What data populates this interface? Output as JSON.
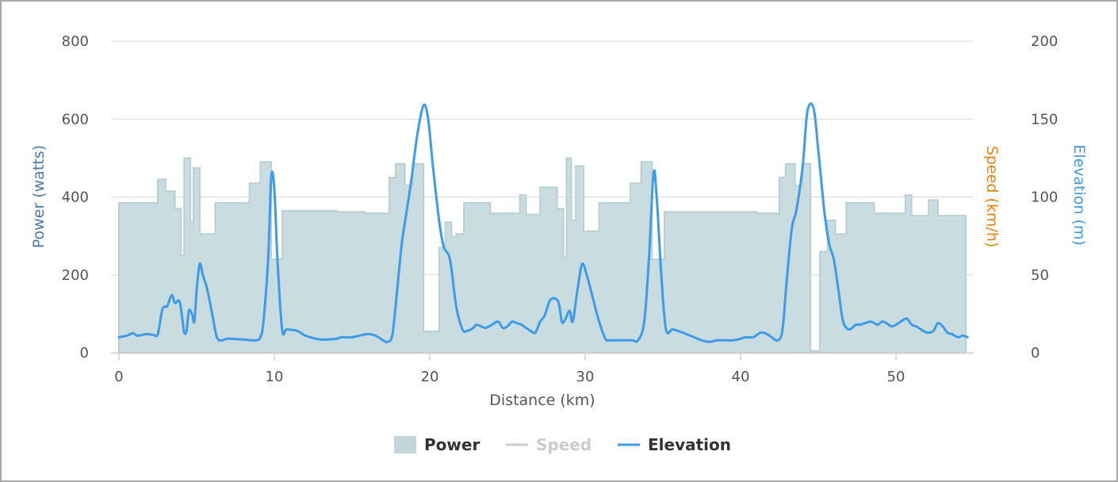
{
  "chart_data": {
    "type": "area",
    "xlabel": "Distance (km)",
    "x_ticks": [
      "0",
      "10",
      "20",
      "30",
      "40",
      "50"
    ],
    "xlim": [
      0,
      55
    ],
    "axes": {
      "power": {
        "label": "Power (watts)",
        "ticks": [
          "0",
          "200",
          "400",
          "600",
          "800"
        ],
        "ylim": [
          0,
          800
        ],
        "color": "#4a79b4"
      },
      "speed": {
        "label": "Speed (km/h)",
        "ticks": [],
        "color": "#e8870e"
      },
      "elevation": {
        "label": "Elevation (m)",
        "ticks": [
          "0",
          "50",
          "100",
          "150",
          "200"
        ],
        "ylim": [
          0,
          200
        ],
        "color": "#3d9be9"
      }
    },
    "grid": true,
    "legend_position": "bottom-center",
    "series": [
      {
        "name": "Power",
        "kind": "step-area",
        "axis": "power",
        "color": "#c9dce0",
        "stroke": "#b8d0d6",
        "points": [
          [
            0.0,
            385
          ],
          [
            0.8,
            385
          ],
          [
            2.5,
            385
          ],
          [
            2.5,
            445
          ],
          [
            3.0,
            445
          ],
          [
            3.0,
            415
          ],
          [
            3.6,
            415
          ],
          [
            3.6,
            370
          ],
          [
            4.0,
            370
          ],
          [
            4.0,
            250
          ],
          [
            4.2,
            250
          ],
          [
            4.2,
            500
          ],
          [
            4.6,
            500
          ],
          [
            4.6,
            335
          ],
          [
            4.8,
            335
          ],
          [
            4.8,
            475
          ],
          [
            5.2,
            475
          ],
          [
            5.2,
            305
          ],
          [
            6.2,
            305
          ],
          [
            6.2,
            385
          ],
          [
            8.4,
            385
          ],
          [
            8.4,
            435
          ],
          [
            9.1,
            435
          ],
          [
            9.1,
            490
          ],
          [
            9.8,
            490
          ],
          [
            9.8,
            240
          ],
          [
            10.5,
            240
          ],
          [
            10.5,
            365
          ],
          [
            14.0,
            365
          ],
          [
            14.0,
            362
          ],
          [
            15.8,
            362
          ],
          [
            15.8,
            358
          ],
          [
            17.4,
            358
          ],
          [
            17.4,
            450
          ],
          [
            17.8,
            450
          ],
          [
            17.8,
            485
          ],
          [
            18.4,
            485
          ],
          [
            18.4,
            430
          ],
          [
            18.9,
            430
          ],
          [
            18.9,
            485
          ],
          [
            19.6,
            485
          ],
          [
            19.6,
            55
          ],
          [
            20.6,
            55
          ],
          [
            20.6,
            270
          ],
          [
            21.0,
            270
          ],
          [
            21.0,
            335
          ],
          [
            21.4,
            335
          ],
          [
            21.4,
            298
          ],
          [
            21.7,
            298
          ],
          [
            21.7,
            305
          ],
          [
            22.2,
            305
          ],
          [
            22.2,
            385
          ],
          [
            23.9,
            385
          ],
          [
            23.9,
            358
          ],
          [
            25.8,
            358
          ],
          [
            25.8,
            405
          ],
          [
            26.2,
            405
          ],
          [
            26.2,
            355
          ],
          [
            27.1,
            355
          ],
          [
            27.1,
            425
          ],
          [
            28.2,
            425
          ],
          [
            28.2,
            370
          ],
          [
            28.6,
            370
          ],
          [
            28.6,
            245
          ],
          [
            28.8,
            245
          ],
          [
            28.8,
            500
          ],
          [
            29.1,
            500
          ],
          [
            29.1,
            340
          ],
          [
            29.4,
            340
          ],
          [
            29.4,
            480
          ],
          [
            29.9,
            480
          ],
          [
            29.9,
            312
          ],
          [
            30.9,
            312
          ],
          [
            30.9,
            385
          ],
          [
            32.9,
            385
          ],
          [
            32.9,
            435
          ],
          [
            33.6,
            435
          ],
          [
            33.6,
            490
          ],
          [
            34.3,
            490
          ],
          [
            34.3,
            240
          ],
          [
            35.1,
            240
          ],
          [
            35.1,
            362
          ],
          [
            41.0,
            362
          ],
          [
            41.0,
            358
          ],
          [
            42.5,
            358
          ],
          [
            42.5,
            450
          ],
          [
            42.9,
            450
          ],
          [
            42.9,
            485
          ],
          [
            43.5,
            485
          ],
          [
            43.5,
            428
          ],
          [
            44.0,
            428
          ],
          [
            44.0,
            485
          ],
          [
            44.5,
            485
          ],
          [
            44.5,
            5
          ],
          [
            45.1,
            5
          ],
          [
            45.1,
            260
          ],
          [
            45.6,
            260
          ],
          [
            45.6,
            340
          ],
          [
            46.1,
            340
          ],
          [
            46.1,
            305
          ],
          [
            46.8,
            305
          ],
          [
            46.8,
            385
          ],
          [
            48.6,
            385
          ],
          [
            48.6,
            358
          ],
          [
            50.6,
            358
          ],
          [
            50.6,
            405
          ],
          [
            51.0,
            405
          ],
          [
            51.0,
            352
          ],
          [
            52.1,
            352
          ],
          [
            52.1,
            392
          ],
          [
            52.7,
            392
          ],
          [
            52.7,
            352
          ],
          [
            54.5,
            352
          ]
        ]
      },
      {
        "name": "Speed",
        "kind": "line",
        "axis": "speed",
        "color": "#c8c8c8",
        "legend_dimmed": true,
        "points": []
      },
      {
        "name": "Elevation",
        "kind": "line",
        "axis": "elevation",
        "color": "#3d9be9",
        "points": [
          [
            0.0,
            10
          ],
          [
            0.5,
            11
          ],
          [
            0.9,
            12.5
          ],
          [
            1.2,
            11
          ],
          [
            1.8,
            12
          ],
          [
            2.2,
            11.5
          ],
          [
            2.5,
            12
          ],
          [
            2.8,
            28
          ],
          [
            3.1,
            30
          ],
          [
            3.4,
            37
          ],
          [
            3.6,
            32
          ],
          [
            3.9,
            33
          ],
          [
            4.1,
            20
          ],
          [
            4.2,
            13
          ],
          [
            4.35,
            14
          ],
          [
            4.5,
            27
          ],
          [
            4.7,
            25
          ],
          [
            4.85,
            20
          ],
          [
            5.0,
            40
          ],
          [
            5.2,
            57
          ],
          [
            5.4,
            50
          ],
          [
            5.7,
            40
          ],
          [
            6.0,
            25
          ],
          [
            6.3,
            10
          ],
          [
            6.6,
            8
          ],
          [
            7.0,
            9
          ],
          [
            8.0,
            8.5
          ],
          [
            8.8,
            8
          ],
          [
            9.1,
            10
          ],
          [
            9.3,
            20
          ],
          [
            9.6,
            60
          ],
          [
            9.8,
            113
          ],
          [
            10.0,
            105
          ],
          [
            10.2,
            60
          ],
          [
            10.5,
            15
          ],
          [
            10.8,
            15
          ],
          [
            11.5,
            14
          ],
          [
            12.0,
            11
          ],
          [
            13.0,
            8.5
          ],
          [
            14.0,
            9
          ],
          [
            14.3,
            10
          ],
          [
            15.0,
            10
          ],
          [
            16.0,
            12
          ],
          [
            16.5,
            11
          ],
          [
            17.0,
            8
          ],
          [
            17.3,
            7
          ],
          [
            17.6,
            12
          ],
          [
            17.9,
            40
          ],
          [
            18.2,
            70
          ],
          [
            18.5,
            90
          ],
          [
            18.8,
            110
          ],
          [
            19.2,
            140
          ],
          [
            19.6,
            159
          ],
          [
            19.9,
            150
          ],
          [
            20.2,
            120
          ],
          [
            20.6,
            85
          ],
          [
            20.9,
            68
          ],
          [
            21.3,
            60
          ],
          [
            21.7,
            30
          ],
          [
            22.1,
            15
          ],
          [
            22.4,
            14
          ],
          [
            22.8,
            16
          ],
          [
            23.0,
            18
          ],
          [
            23.3,
            17
          ],
          [
            23.6,
            16
          ],
          [
            24.0,
            18
          ],
          [
            24.4,
            20
          ],
          [
            24.7,
            16
          ],
          [
            25.0,
            17
          ],
          [
            25.3,
            20
          ],
          [
            25.6,
            19
          ],
          [
            25.9,
            18
          ],
          [
            26.2,
            16
          ],
          [
            26.5,
            14
          ],
          [
            26.8,
            13
          ],
          [
            27.1,
            20
          ],
          [
            27.4,
            24
          ],
          [
            27.7,
            33
          ],
          [
            28.0,
            35
          ],
          [
            28.3,
            32
          ],
          [
            28.5,
            20
          ],
          [
            28.7,
            21
          ],
          [
            29.0,
            27
          ],
          [
            29.2,
            20
          ],
          [
            29.5,
            40
          ],
          [
            29.8,
            57
          ],
          [
            30.1,
            50
          ],
          [
            30.5,
            35
          ],
          [
            30.9,
            20
          ],
          [
            31.3,
            9
          ],
          [
            31.6,
            8
          ],
          [
            32.0,
            8
          ],
          [
            33.0,
            8
          ],
          [
            33.4,
            8
          ],
          [
            33.8,
            20
          ],
          [
            34.1,
            60
          ],
          [
            34.4,
            115
          ],
          [
            34.6,
            100
          ],
          [
            34.9,
            50
          ],
          [
            35.2,
            15
          ],
          [
            35.6,
            15
          ],
          [
            36.0,
            14
          ],
          [
            37.0,
            10
          ],
          [
            37.5,
            8
          ],
          [
            38.0,
            7
          ],
          [
            38.5,
            8
          ],
          [
            39.0,
            8
          ],
          [
            39.5,
            8
          ],
          [
            40.0,
            9
          ],
          [
            40.3,
            10
          ],
          [
            40.8,
            10
          ],
          [
            41.3,
            13
          ],
          [
            41.7,
            12
          ],
          [
            42.0,
            10
          ],
          [
            42.4,
            8
          ],
          [
            42.7,
            15
          ],
          [
            43.0,
            50
          ],
          [
            43.3,
            80
          ],
          [
            43.6,
            92
          ],
          [
            44.0,
            120
          ],
          [
            44.3,
            155
          ],
          [
            44.7,
            157
          ],
          [
            45.0,
            130
          ],
          [
            45.4,
            90
          ],
          [
            45.7,
            70
          ],
          [
            46.0,
            60
          ],
          [
            46.3,
            40
          ],
          [
            46.6,
            20
          ],
          [
            47.0,
            15
          ],
          [
            47.4,
            18
          ],
          [
            47.7,
            18
          ],
          [
            48.0,
            19
          ],
          [
            48.4,
            20
          ],
          [
            48.8,
            18
          ],
          [
            49.1,
            20
          ],
          [
            49.4,
            19
          ],
          [
            49.7,
            17
          ],
          [
            50.0,
            18
          ],
          [
            50.3,
            20
          ],
          [
            50.7,
            22
          ],
          [
            51.0,
            18
          ],
          [
            51.3,
            17
          ],
          [
            51.6,
            15
          ],
          [
            52.0,
            13
          ],
          [
            52.4,
            14
          ],
          [
            52.7,
            19
          ],
          [
            53.0,
            17
          ],
          [
            53.3,
            13
          ],
          [
            53.6,
            12
          ],
          [
            54.0,
            10
          ],
          [
            54.3,
            11
          ],
          [
            54.6,
            10
          ]
        ]
      }
    ]
  }
}
